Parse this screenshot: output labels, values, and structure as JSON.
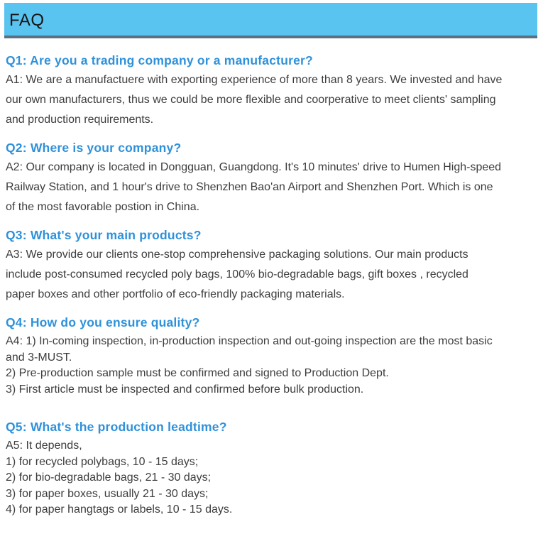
{
  "header": {
    "title": "FAQ"
  },
  "colors": {
    "header_bg": "#5AC4F1",
    "header_border": "#5A7182",
    "question_blue": "#2E91DA",
    "answer_text": "#3D3D3D",
    "header_text": "#161616"
  },
  "faq": {
    "items": [
      {
        "question": "Q1: Are you a trading company or a manufacturer?",
        "answer_lines": [
          "A1: We are a manufactuere with exporting experience of more than 8 years. We invested and have",
          "our own manufacturers, thus we could be more flexible and coorperative to meet clients' sampling",
          "and production requirements."
        ]
      },
      {
        "question": "Q2: Where is your company?",
        "answer_lines": [
          "A2: Our company is located in Dongguan, Guangdong. It's 10 minutes' drive to Humen High-speed",
          "Railway Station, and 1 hour's drive to Shenzhen Bao'an Airport and Shenzhen Port. Which is one",
          "of the most favorable postion in China."
        ]
      },
      {
        "question": "Q3: What's your main products?",
        "answer_lines": [
          "A3: We provide our clients one-stop comprehensive packaging solutions. Our main products",
          "include post-consumed recycled poly bags, 100% bio-degradable bags, gift boxes , recycled",
          "paper boxes and other portfolio of eco-friendly packaging materials."
        ]
      },
      {
        "question": "Q4: How do you ensure quality?",
        "answer_lines": [
          "A4: 1) In-coming inspection, in-production inspection and out-going inspection are the most basic",
          "and 3-MUST.",
          "2) Pre-production sample must be confirmed and signed to Production Dept.",
          "3) First article must be inspected and confirmed before bulk production."
        ]
      },
      {
        "question": "Q5: What's the production leadtime?",
        "answer_lines": [
          "A5: It depends,",
          "1) for recycled polybags, 10 - 15 days;",
          "2) for bio-degradable bags, 21 - 30 days;",
          "3) for paper boxes, usually 21 - 30 days;",
          "4) for paper hangtags or labels, 10 - 15 days."
        ]
      }
    ]
  }
}
